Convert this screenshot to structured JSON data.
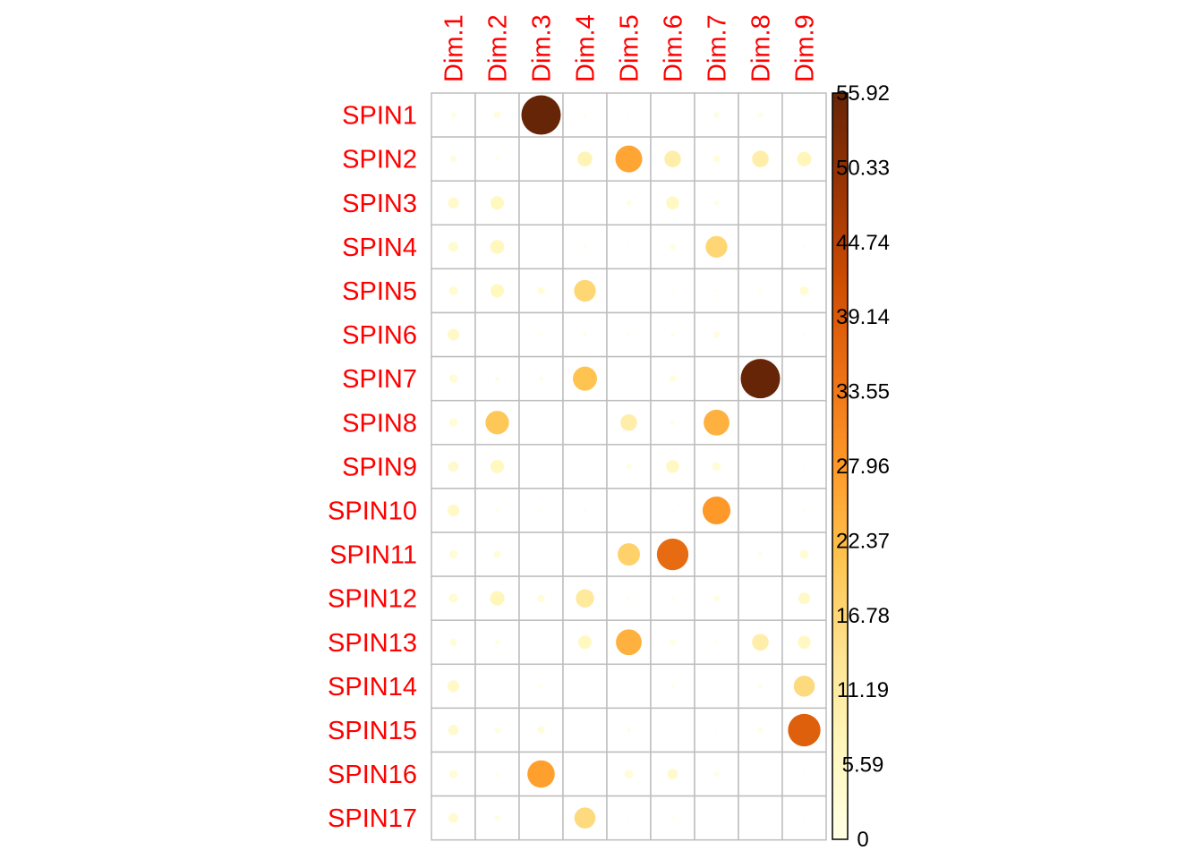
{
  "chart_data": {
    "type": "heatmap",
    "subtype": "correlation-circle-plot",
    "rows": [
      "SPIN1",
      "SPIN2",
      "SPIN3",
      "SPIN4",
      "SPIN5",
      "SPIN6",
      "SPIN7",
      "SPIN8",
      "SPIN9",
      "SPIN10",
      "SPIN11",
      "SPIN12",
      "SPIN13",
      "SPIN14",
      "SPIN15",
      "SPIN16",
      "SPIN17"
    ],
    "columns": [
      "Dim.1",
      "Dim.2",
      "Dim.3",
      "Dim.4",
      "Dim.5",
      "Dim.6",
      "Dim.7",
      "Dim.8",
      "Dim.9"
    ],
    "values": [
      [
        1.0,
        1.5,
        55.9,
        0.3,
        0.2,
        0.0,
        1.2,
        0.8,
        0.1
      ],
      [
        1.5,
        0.4,
        0.2,
        8.0,
        26.0,
        10.0,
        1.8,
        10.0,
        7.5
      ],
      [
        4.5,
        6.5,
        0.0,
        0.0,
        1.0,
        6.0,
        0.8,
        0.1,
        0.0
      ],
      [
        3.5,
        7.0,
        0.0,
        0.3,
        0.1,
        1.2,
        17.0,
        0.0,
        0.2
      ],
      [
        3.0,
        6.5,
        2.0,
        17.0,
        0.0,
        0.3,
        0.3,
        0.4,
        3.0
      ],
      [
        5.0,
        0.0,
        0.3,
        0.6,
        0.4,
        0.5,
        1.5,
        0.1,
        0.3
      ],
      [
        2.5,
        0.7,
        0.6,
        21.0,
        0.0,
        1.5,
        0.0,
        55.9,
        0.0
      ],
      [
        2.5,
        20.0,
        0.0,
        0.0,
        10.0,
        0.6,
        24.0,
        0.0,
        0.0
      ],
      [
        4.0,
        6.5,
        0.2,
        0.1,
        1.0,
        6.0,
        2.5,
        0.1,
        0.1
      ],
      [
        5.0,
        0.3,
        0.2,
        0.2,
        0.1,
        0.2,
        28.0,
        0.1,
        0.3
      ],
      [
        2.5,
        2.0,
        0.0,
        0.0,
        18.0,
        36.0,
        0.0,
        0.6,
        3.0
      ],
      [
        3.0,
        7.5,
        2.0,
        12.0,
        0.3,
        0.4,
        1.2,
        0.0,
        5.0
      ],
      [
        2.0,
        0.8,
        0.2,
        6.5,
        24.0,
        1.2,
        0.3,
        10.0,
        6.0
      ],
      [
        5.0,
        0.0,
        0.4,
        0.0,
        0.0,
        0.3,
        0.0,
        0.6,
        16.0
      ],
      [
        4.0,
        1.2,
        2.0,
        0.2,
        0.6,
        0.0,
        0.1,
        1.0,
        38.0
      ],
      [
        2.5,
        0.4,
        27.0,
        0.0,
        2.5,
        4.0,
        0.8,
        0.0,
        0.1
      ],
      [
        3.5,
        1.0,
        0.0,
        16.0,
        0.2,
        0.3,
        0.0,
        0.1,
        0.1
      ]
    ],
    "color_scale": {
      "min": 0,
      "max": 55.92,
      "ticks": [
        "55.92",
        "50.33",
        "44.74",
        "39.14",
        "33.55",
        "27.96",
        "22.37",
        "16.78",
        "11.19",
        "5.59",
        "0"
      ],
      "colors": [
        "#FFFFE5",
        "#FFF7BC",
        "#FEE391",
        "#FEC44F",
        "#FE9929",
        "#EC7014",
        "#CC4C02",
        "#993404",
        "#662506"
      ]
    },
    "grid": true,
    "legend": "right",
    "xlabel": "",
    "ylabel": "",
    "title": ""
  }
}
